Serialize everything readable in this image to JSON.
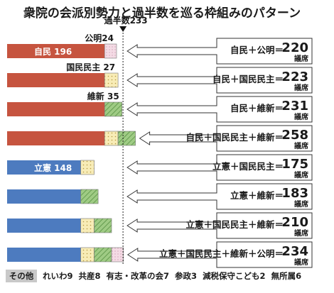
{
  "chart_data": {
    "type": "bar",
    "title": "衆院の会派別勢力と過半数を巡る枠組みのパターン",
    "majority_label": "過半数233",
    "majority_value": 233,
    "seat_unit": "議席",
    "parties": {
      "jimin": {
        "name": "自民",
        "seats": 196,
        "color": "#c6543f"
      },
      "rikken": {
        "name": "立憲",
        "seats": 148,
        "color": "#4d7bbf"
      },
      "kokumin": {
        "name": "国民民主",
        "seats": 27,
        "color": "#f8ecb6"
      },
      "ishin": {
        "name": "維新",
        "seats": 35,
        "color": "#9fcb84"
      },
      "komei": {
        "name": "公明",
        "seats": 24,
        "color": "#e8c3d4"
      }
    },
    "rows": [
      {
        "parts": [
          "jimin",
          "komei"
        ],
        "label": "自民＋公明＝",
        "total": "220",
        "callout": "公明24"
      },
      {
        "parts": [
          "jimin",
          "kokumin"
        ],
        "label": "自民＋国民民主＝",
        "total": "223",
        "callout": "国民民主 27"
      },
      {
        "parts": [
          "jimin",
          "ishin"
        ],
        "label": "自民＋維新＝",
        "total": "231",
        "callout": "維新 35"
      },
      {
        "parts": [
          "jimin",
          "kokumin",
          "ishin"
        ],
        "label": "自民＋国民民主＋維新＝",
        "total": "258",
        "callout": ""
      },
      {
        "parts": [
          "rikken",
          "kokumin"
        ],
        "label": "立憲＋国民民主＝",
        "total": "175",
        "callout": ""
      },
      {
        "parts": [
          "rikken",
          "ishin"
        ],
        "label": "立憲＋維新＝",
        "total": "183",
        "callout": ""
      },
      {
        "parts": [
          "rikken",
          "kokumin",
          "ishin"
        ],
        "label": "立憲＋国民民主＋維新＝",
        "total": "210",
        "callout": ""
      },
      {
        "parts": [
          "rikken",
          "kokumin",
          "ishin",
          "komei"
        ],
        "label": "立憲＋国民民主＋維新＋公明＝",
        "total": "234",
        "callout": ""
      }
    ],
    "bar_labels": {
      "jimin": "自民 196",
      "rikken": "立憲 148"
    },
    "others_label": "その他",
    "others": [
      "れいわ9",
      "共産8",
      "有志・改革の会7",
      "参政3",
      "減税保守こども2",
      "無所属6"
    ]
  }
}
